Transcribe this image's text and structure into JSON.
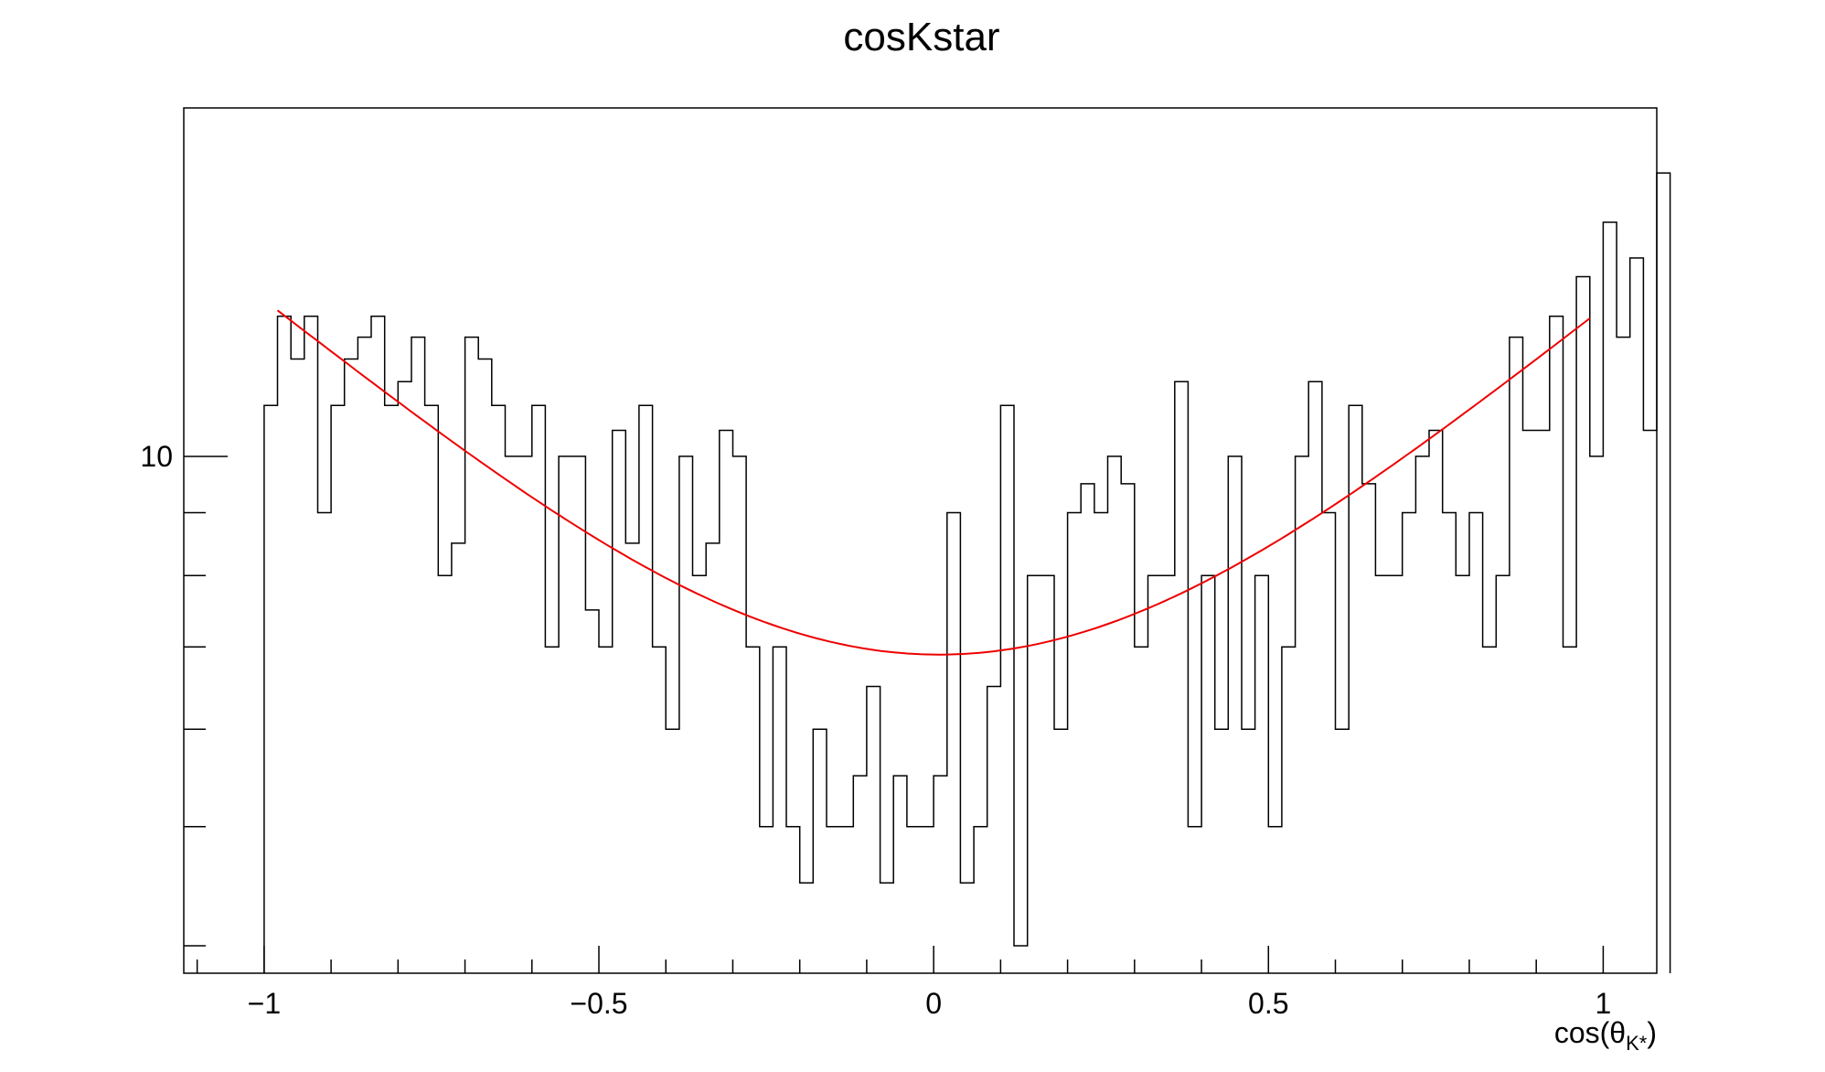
{
  "chart_data": {
    "type": "bar",
    "title": "cosKstar",
    "xlabel": "cos(θ",
    "xlabel_sub": "K*",
    "xlabel_close": ")",
    "xlim": [
      -1.12,
      1.08
    ],
    "ylim": [
      3.8,
      19.2
    ],
    "y_scale": "log",
    "grid": false,
    "colors": {
      "histogram": "#000000",
      "fit": "#ee0000",
      "frame": "#000000"
    },
    "x_ticks": [
      {
        "value": -1,
        "label": "−1"
      },
      {
        "value": -0.5,
        "label": "−0.5"
      },
      {
        "value": 0,
        "label": "0"
      },
      {
        "value": 0.5,
        "label": "0.5"
      },
      {
        "value": 1,
        "label": "1"
      }
    ],
    "y_ticks": [
      {
        "value": 10,
        "label": "10"
      }
    ],
    "bins": {
      "start": -1.0,
      "width": 0.02,
      "values": [
        11,
        13,
        12,
        13,
        9,
        11,
        12,
        12.5,
        13,
        11,
        11.5,
        12.5,
        11,
        8,
        8.5,
        12.5,
        12,
        11,
        10,
        10,
        11,
        7,
        10,
        10,
        7.5,
        7,
        10.5,
        8.5,
        11,
        7,
        6,
        10,
        8,
        8.5,
        10.5,
        10,
        7,
        5,
        7,
        5,
        4.5,
        6,
        5,
        5,
        5.5,
        6.5,
        4.5,
        5.5,
        5,
        5,
        5.5,
        9,
        4.5,
        5,
        6.5,
        11,
        4,
        8,
        8,
        6,
        9,
        9.5,
        9,
        10,
        9.5,
        7,
        8,
        8,
        11.5,
        5,
        8,
        6,
        10,
        6,
        8,
        5,
        7,
        10,
        11.5,
        9,
        6,
        11,
        9.5,
        8,
        8,
        9,
        10,
        10.5,
        9,
        8,
        9,
        7,
        8,
        12.5,
        10.5,
        10.5,
        13,
        7,
        14,
        10,
        15.5,
        12.5,
        14.5,
        10.5,
        17
      ]
    },
    "fit": {
      "x_start": -0.98,
      "x_end": 0.98,
      "a": 6.9,
      "b": -0.1,
      "c": 6.4
    }
  }
}
